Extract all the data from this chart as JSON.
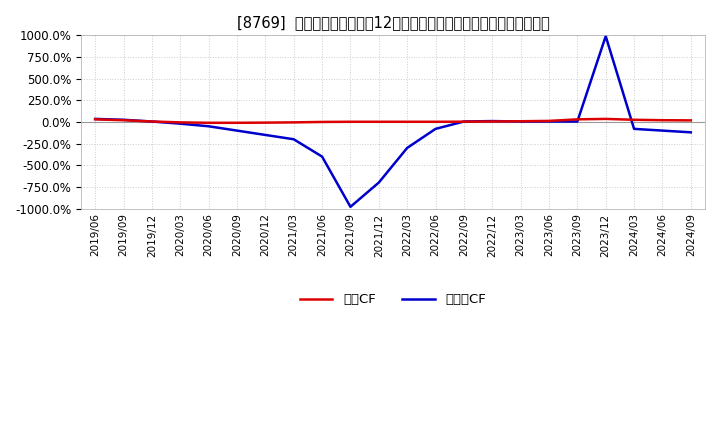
{
  "title": "[8769]  キャッシュフローの12か月移動合計の対前年同期増減率の推移",
  "title_fontsize": 10.5,
  "ylim": [
    -1000,
    1000
  ],
  "yticks": [
    -1000,
    -750,
    -500,
    -250,
    0,
    250,
    500,
    750,
    1000
  ],
  "background_color": "#ffffff",
  "grid_color": "#cccccc",
  "legend_labels": [
    "営業CF",
    "フリーCF"
  ],
  "legend_colors": [
    "#dd0000",
    "#0000cc"
  ],
  "x_dates": [
    "2019/06",
    "2019/09",
    "2019/12",
    "2020/03",
    "2020/06",
    "2020/09",
    "2020/12",
    "2021/03",
    "2021/06",
    "2021/09",
    "2021/12",
    "2022/03",
    "2022/06",
    "2022/09",
    "2022/12",
    "2023/03",
    "2023/06",
    "2023/09",
    "2023/12",
    "2024/03",
    "2024/06",
    "2024/09"
  ],
  "operating_cf": [
    30,
    20,
    5,
    -5,
    -10,
    -10,
    -8,
    -5,
    0,
    2,
    2,
    2,
    2,
    3,
    5,
    8,
    12,
    30,
    35,
    25,
    20,
    18
  ],
  "free_cf": [
    35,
    25,
    5,
    -20,
    -50,
    -100,
    -150,
    -200,
    -400,
    -980,
    -700,
    -300,
    -80,
    5,
    10,
    5,
    5,
    5,
    990,
    -80,
    -100,
    -120
  ]
}
